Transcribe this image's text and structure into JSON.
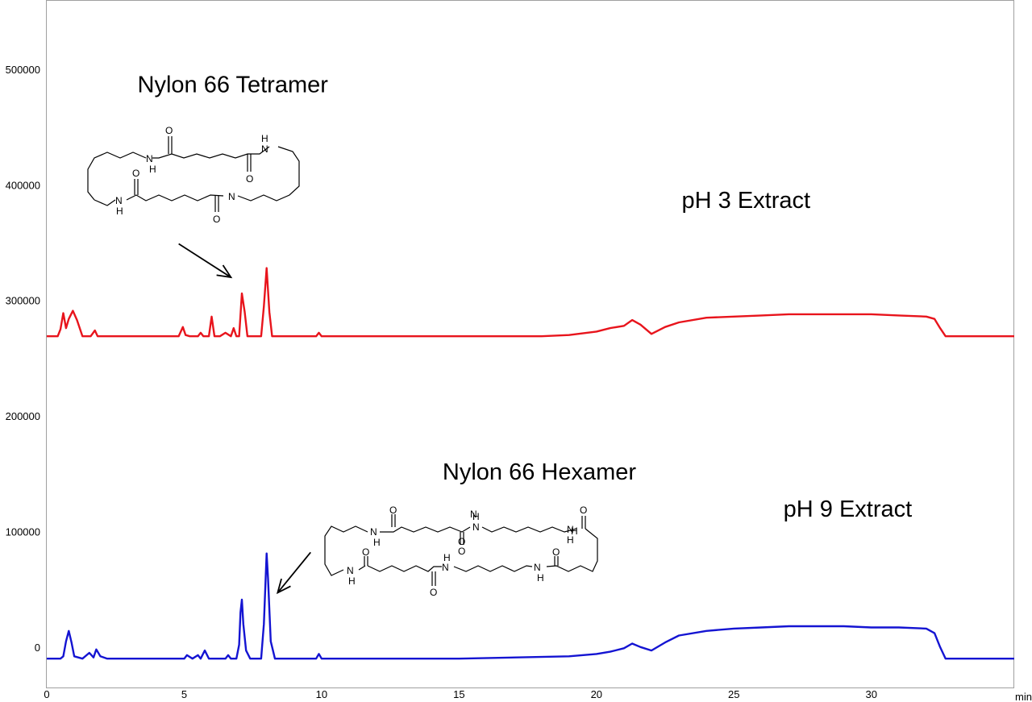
{
  "chart_data": {
    "type": "line",
    "xlabel": "",
    "ylabel": "",
    "x_unit": "min",
    "xlim": [
      0,
      35.2
    ],
    "ylim": [
      -35000,
      560000
    ],
    "grid": false,
    "x_ticks": [
      0,
      5,
      10,
      15,
      20,
      25,
      30
    ],
    "x_tick_labels": [
      "0",
      "5",
      "10",
      "15",
      "20",
      "25",
      "30"
    ],
    "y_ticks": [
      0,
      100000,
      200000,
      300000,
      400000,
      500000
    ],
    "y_tick_labels": [
      "0",
      "100000",
      "200000",
      "300000",
      "400000",
      "500000"
    ],
    "series": [
      {
        "name": "pH 3 Extract",
        "color": "#e8141c",
        "x": [
          0,
          0.4,
          0.5,
          0.6,
          0.7,
          0.8,
          0.95,
          1.1,
          1.3,
          1.6,
          1.75,
          1.85,
          2.1,
          4.8,
          4.95,
          5.05,
          5.2,
          5.5,
          5.6,
          5.7,
          5.9,
          6.0,
          6.1,
          6.3,
          6.5,
          6.7,
          6.8,
          6.9,
          7.0,
          7.1,
          7.2,
          7.3,
          7.8,
          7.9,
          8.0,
          8.1,
          8.2,
          9.8,
          9.9,
          10.0,
          12,
          15,
          18,
          19,
          20,
          20.5,
          21,
          21.3,
          21.6,
          22,
          22.5,
          23,
          24,
          25,
          26,
          27,
          28,
          29,
          30,
          31,
          32,
          32.3,
          32.5,
          32.7,
          33,
          35.2
        ],
        "y": [
          269000,
          269000,
          275000,
          289000,
          276000,
          284000,
          291000,
          283000,
          269000,
          269000,
          274000,
          269000,
          269000,
          269000,
          277000,
          270000,
          269000,
          269000,
          272000,
          269000,
          269000,
          286000,
          269000,
          269000,
          272000,
          269000,
          276000,
          269000,
          269000,
          306000,
          290000,
          269000,
          269000,
          295000,
          328000,
          290000,
          269000,
          269000,
          272000,
          269000,
          269000,
          269000,
          269000,
          270000,
          273000,
          276000,
          278000,
          283000,
          279000,
          271000,
          277000,
          281000,
          285000,
          286000,
          287000,
          288000,
          288000,
          288000,
          288000,
          287000,
          286000,
          284000,
          276000,
          269000,
          269000,
          269000
        ]
      },
      {
        "name": "pH 9 Extract",
        "color": "#1414d2",
        "x": [
          0,
          0.5,
          0.6,
          0.7,
          0.8,
          0.9,
          1.0,
          1.3,
          1.55,
          1.7,
          1.8,
          1.95,
          2.2,
          5.0,
          5.1,
          5.3,
          5.5,
          5.6,
          5.75,
          5.9,
          6.5,
          6.6,
          6.7,
          6.9,
          7.0,
          7.05,
          7.1,
          7.15,
          7.25,
          7.4,
          7.8,
          7.9,
          8.0,
          8.05,
          8.15,
          8.3,
          9.8,
          9.9,
          10.0,
          15,
          19,
          20,
          20.5,
          21,
          21.3,
          21.6,
          22,
          22.5,
          23,
          24,
          25,
          26,
          27,
          28,
          29,
          30,
          31,
          32,
          32.3,
          32.5,
          32.7,
          33,
          35.2
        ],
        "y": [
          -10000,
          -10000,
          -8000,
          5000,
          14000,
          4000,
          -8000,
          -10000,
          -5000,
          -9000,
          -2000,
          -8000,
          -10000,
          -10000,
          -7000,
          -10000,
          -7000,
          -10000,
          -3000,
          -10000,
          -10000,
          -7000,
          -10000,
          -10000,
          2000,
          30000,
          41000,
          20000,
          -3000,
          -10000,
          -10000,
          20000,
          81000,
          60000,
          5000,
          -10000,
          -10000,
          -6000,
          -10000,
          -10000,
          -8000,
          -6000,
          -4000,
          -1000,
          3000,
          0,
          -3000,
          4000,
          10000,
          14000,
          16000,
          17000,
          18000,
          18000,
          18000,
          17000,
          17000,
          16000,
          12000,
          0,
          -10000,
          -10000,
          -10000
        ]
      }
    ],
    "annotations": [
      {
        "text": "Nylon 66 Tetramer",
        "x": 3.3,
        "y": 480000
      },
      {
        "text": "pH 3 Extract",
        "x": 23.1,
        "y": 380000
      },
      {
        "text": "Nylon 66 Hexamer",
        "x": 14.4,
        "y": 145000
      },
      {
        "text": "pH 9 Extract",
        "x": 26.8,
        "y": 113000
      }
    ],
    "arrows": [
      {
        "from": [
          4.8,
          349000
        ],
        "to": [
          6.7,
          320000
        ]
      },
      {
        "from": [
          9.6,
          82000
        ],
        "to": [
          8.4,
          47000
        ]
      }
    ],
    "structures": [
      {
        "name": "tetramer",
        "atoms": [
          "O",
          "N",
          "H",
          "H",
          "N",
          "O",
          "O",
          "N",
          "H",
          "N",
          "O"
        ]
      },
      {
        "name": "hexamer",
        "atoms": [
          "O",
          "N",
          "H",
          "H",
          "N",
          "O",
          "H",
          "N",
          "O",
          "O",
          "N",
          "H",
          "N",
          "H",
          "O",
          "O",
          "N",
          "H",
          "N",
          "H",
          "O"
        ]
      }
    ]
  }
}
